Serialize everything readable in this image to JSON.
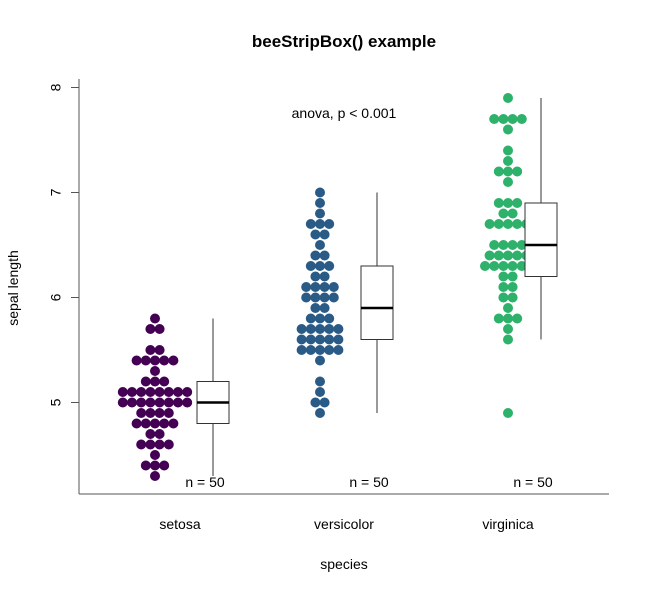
{
  "chart_data": {
    "type": "beeswarm-boxplot",
    "title": "beeStripBox() example",
    "xlabel": "species",
    "ylabel": "sepal length",
    "ylim": [
      4.2,
      8.1
    ],
    "yticks": [
      5,
      6,
      7,
      8
    ],
    "annotation": "anova, p < 0.001",
    "groups": [
      {
        "name": "setosa",
        "color": "#440154",
        "n_label": "n = 50",
        "values": [
          5.1,
          4.9,
          4.7,
          4.6,
          5.0,
          5.4,
          4.6,
          5.0,
          4.4,
          4.9,
          5.4,
          4.8,
          4.8,
          4.3,
          5.8,
          5.7,
          5.4,
          5.1,
          5.7,
          5.1,
          5.4,
          5.1,
          4.6,
          5.1,
          4.8,
          5.0,
          5.0,
          5.2,
          5.2,
          4.7,
          4.8,
          5.4,
          5.2,
          5.5,
          4.9,
          5.0,
          5.5,
          4.9,
          4.4,
          5.1,
          5.0,
          4.5,
          4.4,
          5.0,
          5.1,
          4.8,
          5.1,
          4.6,
          5.3,
          5.0
        ],
        "box": {
          "min": 4.3,
          "q1": 4.8,
          "median": 5.0,
          "q3": 5.2,
          "max": 5.8
        }
      },
      {
        "name": "versicolor",
        "color": "#2a5a86",
        "n_label": "n = 50",
        "values": [
          7.0,
          6.4,
          6.9,
          5.5,
          6.5,
          5.7,
          6.3,
          4.9,
          6.6,
          5.2,
          5.0,
          5.9,
          6.0,
          6.1,
          5.6,
          6.7,
          5.6,
          5.8,
          6.2,
          5.6,
          5.9,
          6.1,
          6.3,
          6.1,
          6.4,
          6.6,
          6.8,
          6.7,
          6.0,
          5.7,
          5.5,
          5.5,
          5.8,
          6.0,
          5.4,
          6.0,
          6.7,
          6.3,
          5.6,
          5.5,
          5.5,
          6.1,
          5.8,
          5.0,
          5.6,
          5.7,
          5.7,
          6.2,
          5.1,
          5.7
        ],
        "box": {
          "min": 4.9,
          "q1": 5.6,
          "median": 5.9,
          "q3": 6.3,
          "max": 7.0
        }
      },
      {
        "name": "virginica",
        "color": "#2db16b",
        "n_label": "n = 50",
        "values": [
          6.3,
          5.8,
          7.1,
          6.3,
          6.5,
          7.6,
          4.9,
          7.3,
          6.7,
          7.2,
          6.5,
          6.4,
          6.8,
          5.7,
          5.8,
          6.4,
          6.5,
          7.7,
          7.7,
          6.0,
          6.9,
          5.6,
          7.7,
          6.3,
          6.7,
          7.2,
          6.2,
          6.1,
          6.4,
          7.2,
          7.4,
          7.9,
          6.4,
          6.3,
          6.1,
          7.7,
          6.3,
          6.4,
          6.0,
          6.9,
          6.7,
          6.9,
          5.8,
          6.8,
          6.7,
          6.7,
          6.3,
          6.5,
          6.2,
          5.9
        ],
        "box": {
          "min": 5.6,
          "q1": 6.2,
          "median": 6.5,
          "q3": 6.9,
          "max": 7.9
        }
      }
    ]
  }
}
